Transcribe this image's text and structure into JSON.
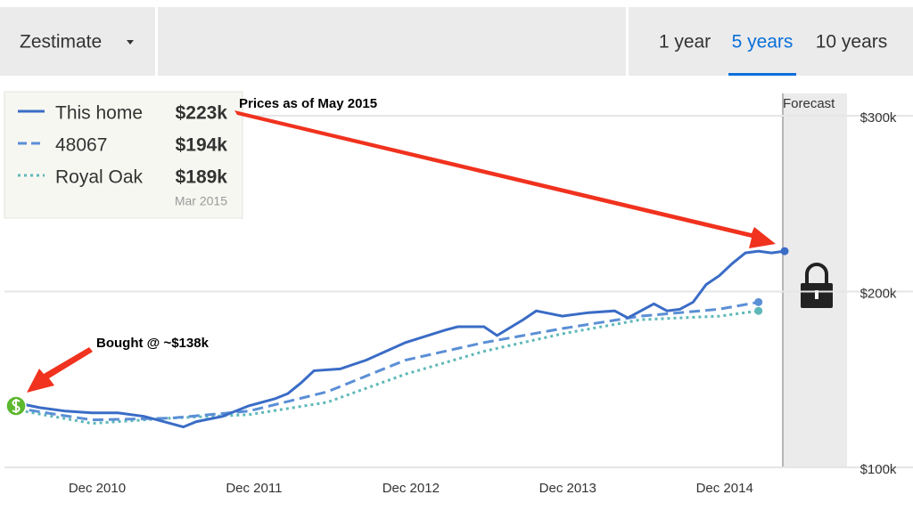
{
  "toolbar": {
    "dropdown": "Zestimate",
    "tabs": [
      "1 year",
      "5 years",
      "10 years"
    ],
    "active_tab": 1
  },
  "chart_data": {
    "type": "line",
    "xlim": [
      "2010-06",
      "2015-05"
    ],
    "xticks": [
      {
        "value": "2010-12",
        "label": "Dec 2010"
      },
      {
        "value": "2011-12",
        "label": "Dec 2011"
      },
      {
        "value": "2012-12",
        "label": "Dec 2012"
      },
      {
        "value": "2013-12",
        "label": "Dec 2013"
      },
      {
        "value": "2014-12",
        "label": "Dec 2014"
      }
    ],
    "ylim": [
      100,
      300
    ],
    "yticks": [
      {
        "value": 100,
        "label": "$100k"
      },
      {
        "value": 200,
        "label": "$200k"
      },
      {
        "value": 300,
        "label": "$300k"
      }
    ],
    "grid": true,
    "forecast_label": "Forecast",
    "legend_date": "Mar 2015",
    "series": [
      {
        "name": "This home",
        "color": "#3a6cc6",
        "style": "solid",
        "latest_label": "$223k",
        "x": [
          "2010-06",
          "2010-08",
          "2010-10",
          "2010-12",
          "2011-02",
          "2011-04",
          "2011-06",
          "2011-07",
          "2011-08",
          "2011-10",
          "2011-12",
          "2012-02",
          "2012-03",
          "2012-04",
          "2012-05",
          "2012-07",
          "2012-09",
          "2012-12",
          "2013-03",
          "2013-04",
          "2013-06",
          "2013-07",
          "2013-09",
          "2013-10",
          "2013-12",
          "2014-02",
          "2014-04",
          "2014-05",
          "2014-07",
          "2014-08",
          "2014-09",
          "2014-10",
          "2014-11",
          "2014-12",
          "2015-01",
          "2015-02",
          "2015-03",
          "2015-04",
          "2015-05"
        ],
        "values": [
          137,
          134,
          132,
          131,
          131,
          129,
          125,
          123,
          126,
          129,
          135,
          139,
          142,
          148,
          155,
          156,
          161,
          171,
          178,
          180,
          180,
          175,
          184,
          189,
          186,
          188,
          189,
          185,
          193,
          189,
          190,
          194,
          204,
          209,
          216,
          222,
          223,
          222,
          223
        ]
      },
      {
        "name": "48067",
        "color": "#5b8fd6",
        "style": "dashed",
        "latest_label": "$194k",
        "x": [
          "2010-06",
          "2010-12",
          "2011-06",
          "2011-12",
          "2012-06",
          "2012-12",
          "2013-06",
          "2013-12",
          "2014-06",
          "2014-12",
          "2015-03"
        ],
        "values": [
          134,
          127,
          128,
          132,
          143,
          161,
          171,
          179,
          186,
          190,
          194
        ]
      },
      {
        "name": "Royal Oak",
        "color": "#5fb8b8",
        "style": "dotted",
        "latest_label": "$189k",
        "x": [
          "2010-06",
          "2010-12",
          "2011-06",
          "2011-12",
          "2012-06",
          "2012-12",
          "2013-06",
          "2013-12",
          "2014-06",
          "2014-12",
          "2015-03"
        ],
        "values": [
          133,
          125,
          128,
          130,
          137,
          153,
          166,
          176,
          184,
          186,
          189
        ]
      }
    ]
  },
  "annotations": {
    "price_note": "Prices as of May 2015",
    "bought_note": "Bought @ ~$138k"
  }
}
